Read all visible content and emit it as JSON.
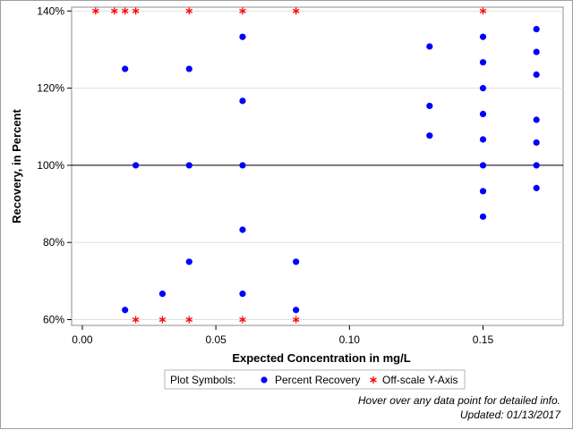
{
  "chart_data": {
    "type": "scatter",
    "xlabel": "Expected Concentration in mg/L",
    "ylabel": "Recovery, in Percent",
    "xlim": [
      -0.004,
      0.18
    ],
    "ylim": [
      58.5,
      141
    ],
    "x_ticks": [
      {
        "value": 0.0,
        "label": "0.00"
      },
      {
        "value": 0.05,
        "label": "0.05"
      },
      {
        "value": 0.1,
        "label": "0.10"
      },
      {
        "value": 0.15,
        "label": "0.15"
      }
    ],
    "y_ticks": [
      {
        "value": 60,
        "label": "60%"
      },
      {
        "value": 80,
        "label": "80%"
      },
      {
        "value": 100,
        "label": "100%"
      },
      {
        "value": 120,
        "label": "120%"
      },
      {
        "value": 140,
        "label": "140%"
      }
    ],
    "reference_line": {
      "y": 100
    },
    "grid": {
      "horizontal": true,
      "vertical": false,
      "color": "#e0e0e0"
    },
    "series": [
      {
        "name": "Percent Recovery",
        "marker": "circle",
        "color": "#0000ff",
        "points": [
          {
            "x": 0.016,
            "y": 125
          },
          {
            "x": 0.016,
            "y": 62.5
          },
          {
            "x": 0.02,
            "y": 100
          },
          {
            "x": 0.03,
            "y": 66.7
          },
          {
            "x": 0.04,
            "y": 125
          },
          {
            "x": 0.04,
            "y": 100
          },
          {
            "x": 0.04,
            "y": 75
          },
          {
            "x": 0.06,
            "y": 133.3
          },
          {
            "x": 0.06,
            "y": 116.7
          },
          {
            "x": 0.06,
            "y": 100
          },
          {
            "x": 0.06,
            "y": 83.3
          },
          {
            "x": 0.06,
            "y": 66.7
          },
          {
            "x": 0.08,
            "y": 75
          },
          {
            "x": 0.08,
            "y": 62.5
          },
          {
            "x": 0.13,
            "y": 130.8
          },
          {
            "x": 0.13,
            "y": 115.4
          },
          {
            "x": 0.13,
            "y": 107.7
          },
          {
            "x": 0.15,
            "y": 133.3
          },
          {
            "x": 0.15,
            "y": 126.7
          },
          {
            "x": 0.15,
            "y": 120
          },
          {
            "x": 0.15,
            "y": 113.3
          },
          {
            "x": 0.15,
            "y": 106.7
          },
          {
            "x": 0.15,
            "y": 100
          },
          {
            "x": 0.15,
            "y": 93.3
          },
          {
            "x": 0.15,
            "y": 86.7
          },
          {
            "x": 0.17,
            "y": 135.3
          },
          {
            "x": 0.17,
            "y": 129.4
          },
          {
            "x": 0.17,
            "y": 123.5
          },
          {
            "x": 0.17,
            "y": 111.8
          },
          {
            "x": 0.17,
            "y": 105.9
          },
          {
            "x": 0.17,
            "y": 100
          },
          {
            "x": 0.17,
            "y": 94.1
          }
        ]
      },
      {
        "name": "Off-scale Y-Axis",
        "marker": "asterisk",
        "color": "#ff0000",
        "points": [
          {
            "x": 0.005,
            "y": 140
          },
          {
            "x": 0.012,
            "y": 140
          },
          {
            "x": 0.016,
            "y": 140
          },
          {
            "x": 0.02,
            "y": 140
          },
          {
            "x": 0.04,
            "y": 140
          },
          {
            "x": 0.06,
            "y": 140
          },
          {
            "x": 0.08,
            "y": 140
          },
          {
            "x": 0.15,
            "y": 140
          },
          {
            "x": 0.02,
            "y": 60
          },
          {
            "x": 0.03,
            "y": 60
          },
          {
            "x": 0.04,
            "y": 60
          },
          {
            "x": 0.06,
            "y": 60
          },
          {
            "x": 0.08,
            "y": 60
          }
        ]
      }
    ],
    "legend": {
      "title": "Plot Symbols:",
      "placement": "bottom",
      "items": [
        {
          "label": "Percent Recovery",
          "marker": "circle",
          "color": "#0000ff"
        },
        {
          "label": "Off-scale Y-Axis",
          "marker": "asterisk",
          "color": "#ff0000"
        }
      ]
    },
    "footnotes": [
      "Hover over any data point for detailed info.",
      "Updated: 01/13/2017"
    ]
  }
}
